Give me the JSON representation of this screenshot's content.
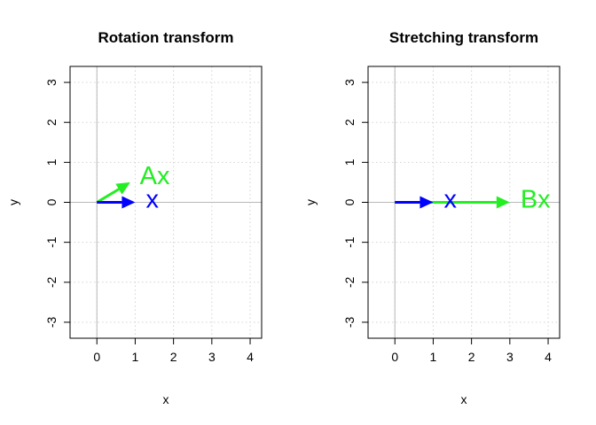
{
  "chart_data": [
    {
      "type": "vector-plot",
      "title": "Rotation transform",
      "xlabel": "x",
      "ylabel": "y",
      "xlim": [
        -0.7,
        4.3
      ],
      "ylim": [
        -3.4,
        3.4
      ],
      "xticks": [
        0,
        1,
        2,
        3,
        4
      ],
      "yticks": [
        -3,
        -2,
        -1,
        0,
        1,
        2,
        3
      ],
      "grid": true,
      "vectors": [
        {
          "label": "x",
          "from": [
            0,
            0
          ],
          "to": [
            1,
            0
          ],
          "color": "#0000ff"
        },
        {
          "label": "Ax",
          "from": [
            0,
            0
          ],
          "to": [
            0.87,
            0.5
          ],
          "color": "#22ee22"
        }
      ]
    },
    {
      "type": "vector-plot",
      "title": "Stretching transform",
      "xlabel": "x",
      "ylabel": "y",
      "xlim": [
        -0.7,
        4.3
      ],
      "ylim": [
        -3.4,
        3.4
      ],
      "xticks": [
        0,
        1,
        2,
        3,
        4
      ],
      "yticks": [
        -3,
        -2,
        -1,
        0,
        1,
        2,
        3
      ],
      "grid": true,
      "vectors": [
        {
          "label": "x",
          "from": [
            0,
            0
          ],
          "to": [
            1,
            0
          ],
          "color": "#0000ff"
        },
        {
          "label": "Bx",
          "from": [
            0,
            0
          ],
          "to": [
            3,
            0
          ],
          "color": "#22ee22"
        }
      ]
    }
  ]
}
